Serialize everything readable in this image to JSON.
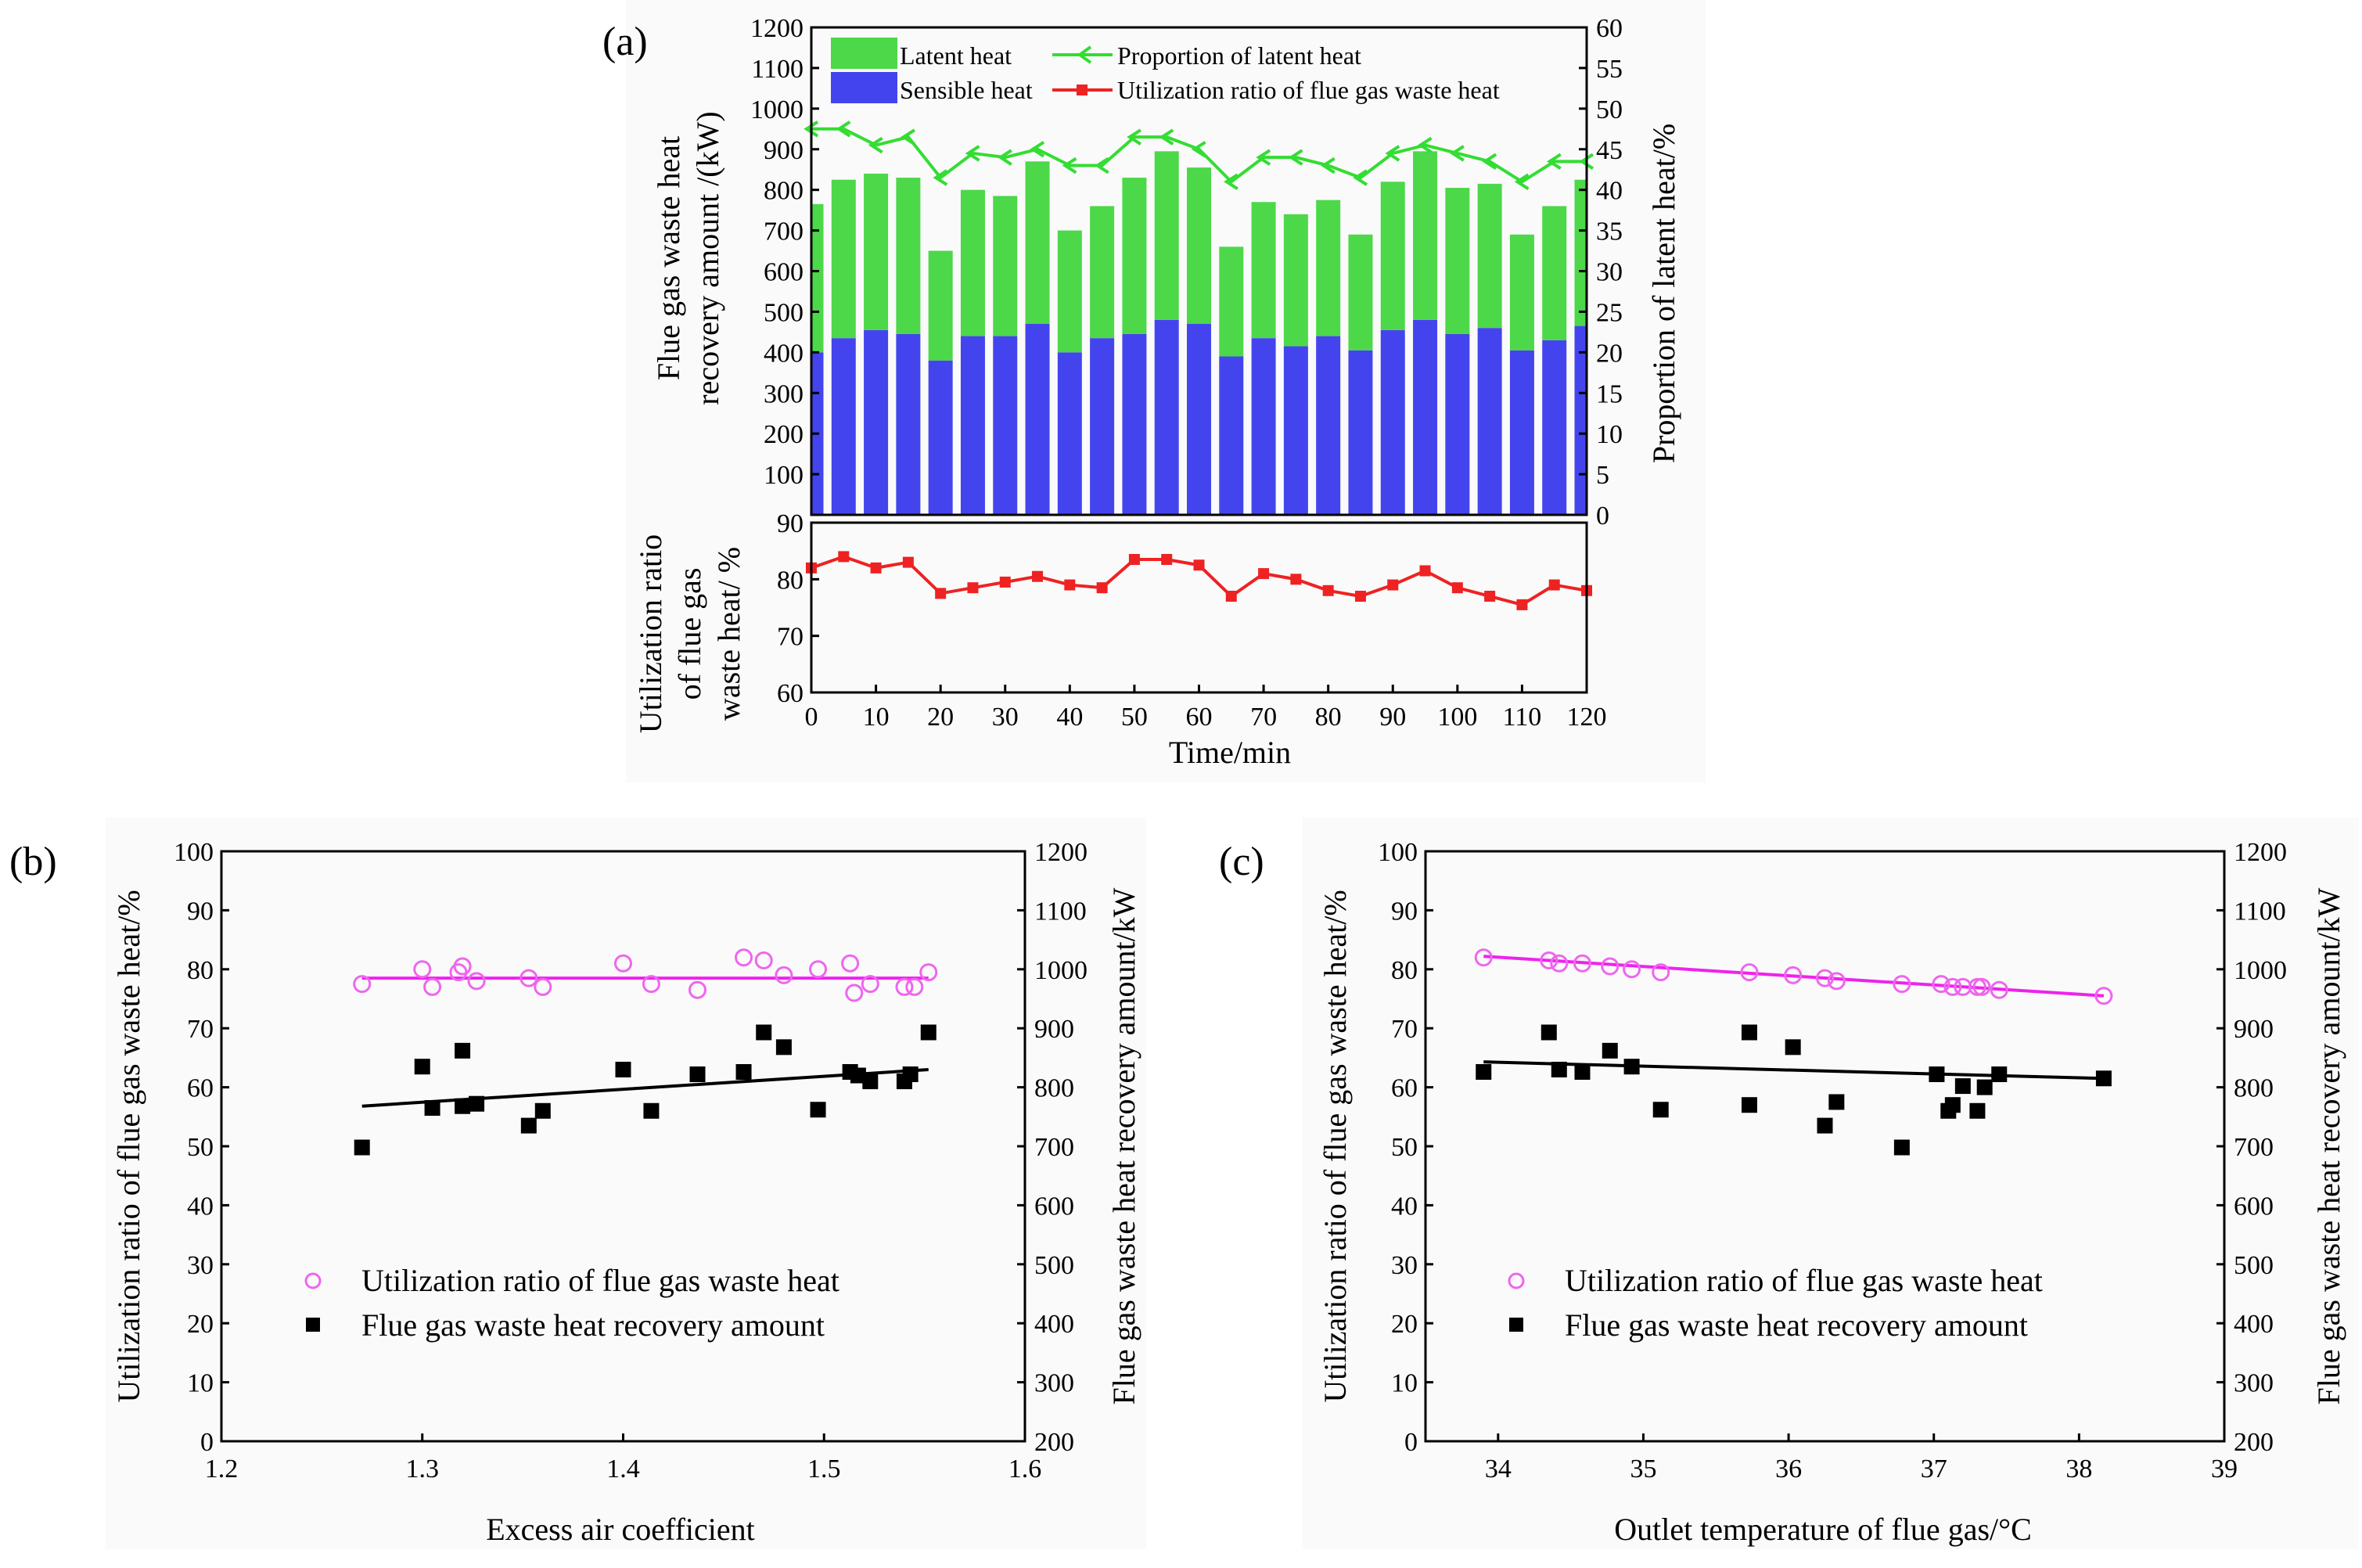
{
  "colors": {
    "latent": "#4cd848",
    "sensible": "#4444ee",
    "proportion_line": "#33dd33",
    "utilization_line": "#ee2222",
    "utilization_points": "#ee66ee",
    "recovery_points": "#000000"
  },
  "chart_data": [
    {
      "panel": "(a)",
      "type": "bar",
      "stacked": true,
      "xlabel": "Time/min",
      "ylabel": "Flue gas waste heat recovery amount /(kW)",
      "y2label": "Proportion of latent heat/%",
      "x": [
        0,
        5,
        10,
        15,
        20,
        25,
        30,
        35,
        40,
        45,
        50,
        55,
        60,
        65,
        70,
        75,
        80,
        85,
        90,
        95,
        100,
        105,
        110,
        115,
        120
      ],
      "xticks": [
        0,
        10,
        20,
        30,
        40,
        50,
        60,
        70,
        80,
        90,
        100,
        110,
        120
      ],
      "xlim": [
        0,
        120
      ],
      "ylim": [
        0,
        1200
      ],
      "yticks": [
        100,
        200,
        300,
        400,
        500,
        600,
        700,
        800,
        900,
        1000,
        1100,
        1200
      ],
      "y2lim": [
        0,
        60
      ],
      "y2ticks": [
        0,
        5,
        10,
        15,
        20,
        25,
        30,
        35,
        40,
        45,
        50,
        55,
        60
      ],
      "series": [
        {
          "name": "Sensible heat",
          "values": [
            400,
            435,
            455,
            445,
            380,
            440,
            440,
            470,
            400,
            435,
            445,
            480,
            470,
            390,
            435,
            415,
            440,
            405,
            455,
            480,
            445,
            460,
            405,
            430,
            465
          ]
        },
        {
          "name": "Latent heat",
          "values": [
            365,
            390,
            385,
            385,
            270,
            360,
            345,
            400,
            300,
            325,
            385,
            415,
            385,
            270,
            335,
            325,
            335,
            285,
            365,
            415,
            360,
            355,
            285,
            330,
            360
          ]
        },
        {
          "name": "Proportion of latent heat",
          "axis": "right",
          "values": [
            47.5,
            47.5,
            45.5,
            46.5,
            41.5,
            44.5,
            44,
            45,
            43,
            43,
            46.5,
            46.5,
            45,
            41,
            44,
            44,
            43,
            41.5,
            44.5,
            45.5,
            44.5,
            43.5,
            41,
            43.5,
            43.5
          ]
        }
      ],
      "legend": [
        "Latent heat",
        "Proportion of latent heat",
        "Sensible heat",
        "Utilization ratio of flue gas waste heat"
      ]
    },
    {
      "panel": "(a)-lower",
      "type": "line",
      "ylabel_lines": [
        "Utilization ratio",
        "of flue gas",
        "waste heat/ %"
      ],
      "x": [
        0,
        5,
        10,
        15,
        20,
        25,
        30,
        35,
        40,
        45,
        50,
        55,
        60,
        65,
        70,
        75,
        80,
        85,
        90,
        95,
        100,
        105,
        110,
        115,
        120
      ],
      "xlim": [
        0,
        120
      ],
      "ylim": [
        60,
        90
      ],
      "yticks": [
        60,
        70,
        80,
        90
      ],
      "series": [
        {
          "name": "Utilization ratio of flue gas waste heat",
          "values": [
            82,
            84,
            82,
            83,
            77.5,
            78.5,
            79.5,
            80.5,
            79,
            78.5,
            83.5,
            83.5,
            82.5,
            77,
            81,
            80,
            78,
            77,
            79,
            81.5,
            78.5,
            77,
            75.5,
            79,
            78
          ]
        }
      ]
    },
    {
      "panel": "(b)",
      "type": "scatter",
      "xlabel": "Excess air coefficient",
      "ylabel": "Utilization ratio of flue gas waste heat/%",
      "y2label": "Flue gas waste heat recovery amount/kW",
      "xlim": [
        1.2,
        1.6
      ],
      "xticks": [
        1.2,
        1.3,
        1.4,
        1.5,
        1.6
      ],
      "ylim": [
        0,
        100
      ],
      "yticks": [
        0,
        10,
        20,
        30,
        40,
        50,
        60,
        70,
        80,
        90,
        100
      ],
      "y2lim": [
        200,
        1200
      ],
      "y2ticks": [
        200,
        300,
        400,
        500,
        600,
        700,
        800,
        900,
        1000,
        1100,
        1200
      ],
      "series": [
        {
          "name": "Utilization ratio of flue gas waste heat",
          "marker": "open-circle",
          "axis": "left",
          "x": [
            1.27,
            1.3,
            1.305,
            1.318,
            1.32,
            1.327,
            1.353,
            1.36,
            1.4,
            1.414,
            1.437,
            1.46,
            1.47,
            1.48,
            1.497,
            1.513,
            1.515,
            1.523,
            1.54,
            1.545,
            1.552
          ],
          "y": [
            77.5,
            80,
            77,
            79.5,
            80.5,
            78,
            78.5,
            77,
            81,
            77.5,
            76.5,
            82,
            81.5,
            79,
            80,
            81,
            76,
            77.5,
            77,
            77,
            79.5
          ],
          "fit": [
            78.5,
            78.5
          ]
        },
        {
          "name": "Flue gas waste heat recovery amount",
          "marker": "filled-square",
          "axis": "right",
          "x": [
            1.27,
            1.3,
            1.305,
            1.32,
            1.32,
            1.327,
            1.353,
            1.36,
            1.4,
            1.414,
            1.437,
            1.46,
            1.47,
            1.48,
            1.497,
            1.513,
            1.517,
            1.523,
            1.54,
            1.543,
            1.552
          ],
          "y": [
            698,
            835,
            765,
            862,
            768,
            772,
            735,
            760,
            830,
            760,
            822,
            826,
            893,
            868,
            762,
            826,
            820,
            810,
            810,
            822,
            893
          ],
          "fit": [
            768,
            830
          ]
        }
      ]
    },
    {
      "panel": "(c)",
      "type": "scatter",
      "xlabel": "Outlet temperature of flue gas/°C",
      "ylabel": "Utilization ratio of flue gas waste heat/%",
      "y2label": "Flue gas waste heat recovery amount/kW",
      "xlim": [
        33.5,
        39
      ],
      "xticks": [
        34,
        35,
        36,
        37,
        38,
        39
      ],
      "ylim": [
        0,
        100
      ],
      "yticks": [
        0,
        10,
        20,
        30,
        40,
        50,
        60,
        70,
        80,
        90,
        100
      ],
      "y2lim": [
        200,
        1200
      ],
      "y2ticks": [
        200,
        300,
        400,
        500,
        600,
        700,
        800,
        900,
        1000,
        1100,
        1200
      ],
      "series": [
        {
          "name": "Utilization ratio of flue gas waste heat",
          "marker": "open-circle",
          "axis": "left",
          "x": [
            33.9,
            34.35,
            34.42,
            34.58,
            34.77,
            34.92,
            35.12,
            35.73,
            36.03,
            36.25,
            36.33,
            36.78,
            37.05,
            37.13,
            37.2,
            37.3,
            37.33,
            37.45,
            38.17
          ],
          "y": [
            82,
            81.5,
            81,
            81,
            80.5,
            80,
            79.5,
            79.5,
            79,
            78.5,
            78,
            77.5,
            77.5,
            77,
            77,
            77,
            77,
            76.5,
            75.5
          ],
          "fit": [
            82.2,
            75.5
          ]
        },
        {
          "name": "Flue gas waste heat recovery amount",
          "marker": "filled-square",
          "axis": "right",
          "x": [
            33.9,
            34.35,
            34.42,
            34.58,
            34.77,
            34.92,
            35.12,
            35.73,
            35.73,
            36.03,
            36.25,
            36.33,
            36.78,
            37.02,
            37.1,
            37.13,
            37.2,
            37.3,
            37.35,
            37.45,
            38.17
          ],
          "y": [
            826,
            893,
            830,
            826,
            862,
            835,
            762,
            893,
            770,
            868,
            735,
            775,
            698,
            822,
            760,
            770,
            802,
            760,
            800,
            822,
            815
          ],
          "fit": [
            843,
            815
          ]
        }
      ]
    }
  ],
  "panel_labels": {
    "a": "(a)",
    "b": "(b)",
    "c": "(c)"
  },
  "panel_a": {
    "ylabel_line1": "Flue gas waste heat",
    "ylabel_line2": "recovery amount /(kW)",
    "y2label": "Proportion of latent heat/%",
    "lower_ylabel_line1": "Utilization ratio",
    "lower_ylabel_line2": "of flue gas",
    "lower_ylabel_line3": "waste heat/ %",
    "xlabel": "Time/min",
    "legend_latent": "Latent heat",
    "legend_sensible": "Sensible heat",
    "legend_proportion": "Proportion of latent heat",
    "legend_utilization": "Utilization ratio of flue gas waste heat"
  },
  "panel_b": {
    "xlabel": "Excess air coefficient",
    "ylabel": "Utilization ratio of flue gas waste heat/%",
    "y2label": "Flue gas waste heat recovery amount/kW",
    "legend_circle": "Utilization ratio of flue gas waste heat",
    "legend_square": "Flue gas waste heat recovery amount"
  },
  "panel_c": {
    "xlabel": "Outlet temperature of flue gas/°C",
    "ylabel": "Utilization ratio of flue gas waste heat/%",
    "y2label": "Flue gas waste heat recovery amount/kW",
    "legend_circle": "Utilization ratio of flue gas waste heat",
    "legend_square": "Flue gas waste heat recovery amount"
  }
}
